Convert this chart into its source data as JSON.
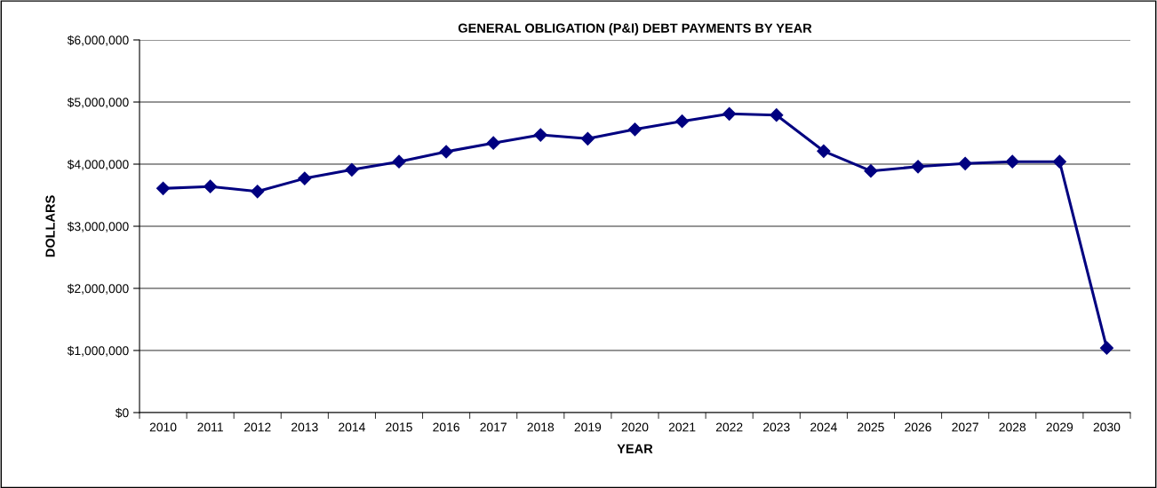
{
  "chart_data": {
    "type": "line",
    "title": "GENERAL OBLIGATION (P&I) DEBT PAYMENTS BY YEAR",
    "xlabel": "YEAR",
    "ylabel": "DOLLARS",
    "categories": [
      "2010",
      "2011",
      "2012",
      "2013",
      "2014",
      "2015",
      "2016",
      "2017",
      "2018",
      "2019",
      "2020",
      "2021",
      "2022",
      "2023",
      "2024",
      "2025",
      "2026",
      "2027",
      "2028",
      "2029",
      "2030"
    ],
    "series": [
      {
        "color": "#000080",
        "values": [
          3610000,
          3640000,
          3560000,
          3770000,
          3910000,
          4040000,
          4200000,
          4340000,
          4470000,
          4410000,
          4560000,
          4690000,
          4810000,
          4790000,
          4210000,
          3890000,
          3960000,
          4010000,
          4040000,
          4040000,
          1040000
        ]
      }
    ],
    "ylim": [
      0,
      6000000
    ],
    "yticks": [
      {
        "value": 0,
        "label": "$0"
      },
      {
        "value": 1000000,
        "label": "$1,000,000"
      },
      {
        "value": 2000000,
        "label": "$2,000,000"
      },
      {
        "value": 3000000,
        "label": "$3,000,000"
      },
      {
        "value": 4000000,
        "label": "$4,000,000"
      },
      {
        "value": 5000000,
        "label": "$5,000,000"
      },
      {
        "value": 6000000,
        "label": "$6,000,000"
      }
    ],
    "grid": "y",
    "legend": false,
    "marker": "diamond",
    "line_style": "solid"
  }
}
